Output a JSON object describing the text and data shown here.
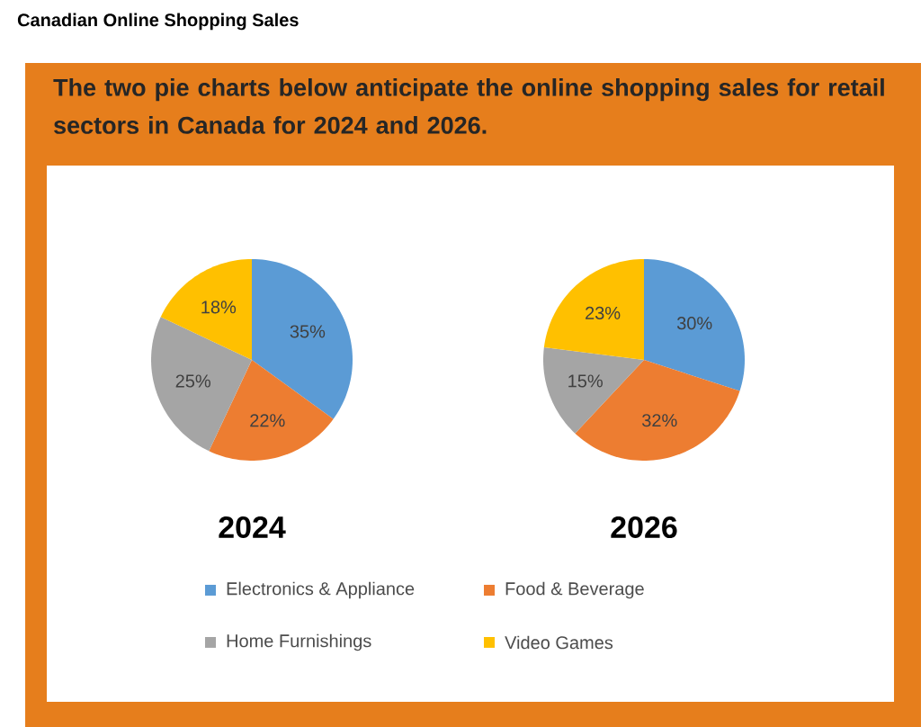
{
  "chart_data": {
    "type": "pie",
    "title": "Canadian Online Shopping Sales",
    "subtitle": "The two pie charts below anticipate the online shopping sales for retail sectors in Canada for 2024 and 2026.",
    "categories": [
      "Electronics & Appliance",
      "Food & Beverage",
      "Home Furnishings",
      "Video Games"
    ],
    "colors": [
      "#5b9bd5",
      "#ed7d31",
      "#a5a5a5",
      "#ffc000"
    ],
    "series": [
      {
        "name": "2024",
        "values": [
          35,
          22,
          25,
          18
        ],
        "value_labels": [
          "35%",
          "22%",
          "25%",
          "18%"
        ]
      },
      {
        "name": "2026",
        "values": [
          30,
          32,
          15,
          23
        ],
        "value_labels": [
          "30%",
          "32%",
          "15%",
          "23%"
        ]
      }
    ],
    "legend": "bottom"
  }
}
